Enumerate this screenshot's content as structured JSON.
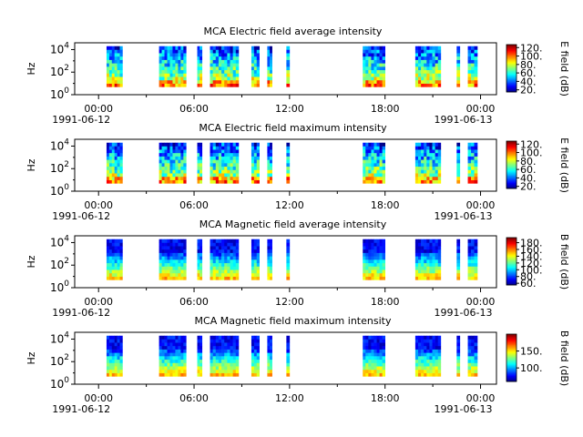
{
  "chart_data": [
    {
      "type": "heatmap",
      "title": "MCA  Electric field average intensity",
      "ylabel": "Hz",
      "y_scale": "log",
      "ylim": [
        1,
        40000
      ],
      "y_ticks": [
        {
          "v": 1,
          "b": "10",
          "e": "0"
        },
        {
          "v": 100,
          "b": "10",
          "e": "2"
        },
        {
          "v": 10000,
          "b": "10",
          "e": "4"
        }
      ],
      "x_range_hours": [
        -1.5,
        25
      ],
      "x_ticks": [
        {
          "h": 0,
          "label": "00:00",
          "date": "1991-06-12"
        },
        {
          "h": 6,
          "label": "06:00",
          "date": ""
        },
        {
          "h": 12,
          "label": "12:00",
          "date": ""
        },
        {
          "h": 18,
          "label": "18:00",
          "date": ""
        },
        {
          "h": 24,
          "label": "00:00",
          "date": "1991-06-13"
        }
      ],
      "colorbar": {
        "label": "E field (dB)",
        "min": 15,
        "max": 127,
        "ticks": [
          "20.",
          "40.",
          "60.",
          "80.",
          "100.",
          "120."
        ],
        "tick_values": [
          20,
          40,
          60,
          80,
          100,
          120
        ]
      },
      "palette": "electric"
    },
    {
      "type": "heatmap",
      "title": "MCA  Electric field maximum intensity",
      "ylabel": "Hz",
      "y_scale": "log",
      "ylim": [
        1,
        40000
      ],
      "y_ticks": [
        {
          "v": 1,
          "b": "10",
          "e": "0"
        },
        {
          "v": 100,
          "b": "10",
          "e": "2"
        },
        {
          "v": 10000,
          "b": "10",
          "e": "4"
        }
      ],
      "x_range_hours": [
        -1.5,
        25
      ],
      "x_ticks": [
        {
          "h": 0,
          "label": "00:00",
          "date": "1991-06-12"
        },
        {
          "h": 6,
          "label": "06:00",
          "date": ""
        },
        {
          "h": 12,
          "label": "12:00",
          "date": ""
        },
        {
          "h": 18,
          "label": "18:00",
          "date": ""
        },
        {
          "h": 24,
          "label": "00:00",
          "date": "1991-06-13"
        }
      ],
      "colorbar": {
        "label": "E field (dB)",
        "min": 15,
        "max": 127,
        "ticks": [
          "20.",
          "40.",
          "60.",
          "80.",
          "100.",
          "120."
        ],
        "tick_values": [
          20,
          40,
          60,
          80,
          100,
          120
        ]
      },
      "palette": "electric"
    },
    {
      "type": "heatmap",
      "title": "MCA  Magnetic field average intensity",
      "ylabel": "Hz",
      "y_scale": "log",
      "ylim": [
        1,
        40000
      ],
      "y_ticks": [
        {
          "v": 1,
          "b": "10",
          "e": "0"
        },
        {
          "v": 100,
          "b": "10",
          "e": "2"
        },
        {
          "v": 10000,
          "b": "10",
          "e": "4"
        }
      ],
      "x_range_hours": [
        -1.5,
        25
      ],
      "x_ticks": [
        {
          "h": 0,
          "label": "00:00",
          "date": "1991-06-12"
        },
        {
          "h": 6,
          "label": "06:00",
          "date": ""
        },
        {
          "h": 12,
          "label": "12:00",
          "date": ""
        },
        {
          "h": 18,
          "label": "18:00",
          "date": ""
        },
        {
          "h": 24,
          "label": "00:00",
          "date": "1991-06-13"
        }
      ],
      "colorbar": {
        "label": "B field (dB)",
        "min": 55,
        "max": 195,
        "ticks": [
          "60.",
          "80.",
          "100.",
          "120.",
          "140.",
          "160.",
          "180."
        ],
        "tick_values": [
          60,
          80,
          100,
          120,
          140,
          160,
          180
        ]
      },
      "palette": "magnetic"
    },
    {
      "type": "heatmap",
      "title": "MCA  Magnetic field maximum intensity",
      "ylabel": "Hz",
      "y_scale": "log",
      "ylim": [
        1,
        40000
      ],
      "y_ticks": [
        {
          "v": 1,
          "b": "10",
          "e": "0"
        },
        {
          "v": 100,
          "b": "10",
          "e": "2"
        },
        {
          "v": 10000,
          "b": "10",
          "e": "4"
        }
      ],
      "x_range_hours": [
        -1.5,
        25
      ],
      "x_ticks": [
        {
          "h": 0,
          "label": "00:00",
          "date": "1991-06-12"
        },
        {
          "h": 6,
          "label": "06:00",
          "date": ""
        },
        {
          "h": 12,
          "label": "12:00",
          "date": ""
        },
        {
          "h": 18,
          "label": "18:00",
          "date": ""
        },
        {
          "h": 24,
          "label": "00:00",
          "date": "1991-06-13"
        }
      ],
      "colorbar": {
        "label": "B field (dB)",
        "min": 60,
        "max": 200,
        "ticks": [
          "100.",
          "150."
        ],
        "tick_values": [
          100,
          150
        ]
      },
      "palette": "magnetic"
    }
  ],
  "data_coverage_hours": [
    [
      0.5,
      1.5
    ],
    [
      3.8,
      5.5
    ],
    [
      6.2,
      6.5
    ],
    [
      7.0,
      8.8
    ],
    [
      9.6,
      10.1
    ],
    [
      10.6,
      10.9
    ],
    [
      11.8,
      12.0
    ],
    [
      16.6,
      18.0
    ],
    [
      19.9,
      21.5
    ],
    [
      22.5,
      22.7
    ],
    [
      23.2,
      23.8
    ]
  ]
}
